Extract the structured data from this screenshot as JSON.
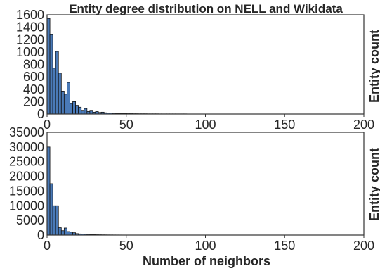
{
  "chart_data": [
    {
      "type": "bar",
      "title": "Entity degree distribution on NELL and Wikidata",
      "xlabel": "",
      "ylabel": "Entity count",
      "xlim": [
        0,
        200
      ],
      "ylim": [
        0,
        1600
      ],
      "xticks": [
        0,
        50,
        100,
        150,
        200
      ],
      "yticks": [
        0,
        200,
        400,
        600,
        800,
        1000,
        1200,
        1400,
        1600
      ],
      "bin_width": 1.8,
      "values": [
        1540,
        1280,
        740,
        1010,
        660,
        370,
        320,
        510,
        170,
        200,
        140,
        110,
        60,
        90,
        40,
        60,
        30,
        40,
        25,
        30,
        20,
        15,
        15,
        12,
        10,
        10,
        8,
        8,
        6,
        6,
        5,
        5,
        4,
        4,
        4,
        3,
        3,
        3,
        3,
        2,
        2,
        2,
        2,
        2,
        2,
        2,
        2,
        2,
        2,
        1,
        1,
        1,
        1,
        1,
        1,
        1,
        1,
        1,
        1,
        1,
        1,
        1,
        1,
        1,
        1,
        1,
        1,
        1,
        1,
        1,
        1,
        1,
        1,
        1,
        1,
        1,
        1,
        1,
        1,
        1,
        1,
        1,
        1,
        1,
        1,
        1,
        1,
        1,
        1,
        1,
        1,
        1,
        1,
        1,
        1,
        1,
        1,
        1,
        1,
        1,
        1,
        1,
        1,
        1,
        1,
        1,
        1,
        1,
        1,
        1,
        1
      ],
      "grid": false
    },
    {
      "type": "bar",
      "title": "",
      "xlabel": "Number of neighbors",
      "ylabel": "Entity count",
      "xlim": [
        0,
        200
      ],
      "ylim": [
        0,
        35000
      ],
      "xticks": [
        0,
        50,
        100,
        150,
        200
      ],
      "yticks": [
        0,
        5000,
        10000,
        15000,
        20000,
        25000,
        30000,
        35000
      ],
      "bin_width": 1.8,
      "values": [
        30000,
        17500,
        10000,
        10000,
        2500,
        1500,
        2400,
        1200,
        1000,
        800,
        500,
        400,
        350,
        300,
        250,
        200,
        150,
        120,
        100,
        80,
        70,
        60,
        50,
        40,
        35,
        30,
        25,
        20,
        18,
        15,
        12,
        10,
        8,
        6,
        5,
        4,
        3,
        2,
        2,
        2,
        1,
        1,
        1,
        1,
        1,
        1,
        1,
        1,
        1,
        1
      ],
      "grid": false
    }
  ]
}
